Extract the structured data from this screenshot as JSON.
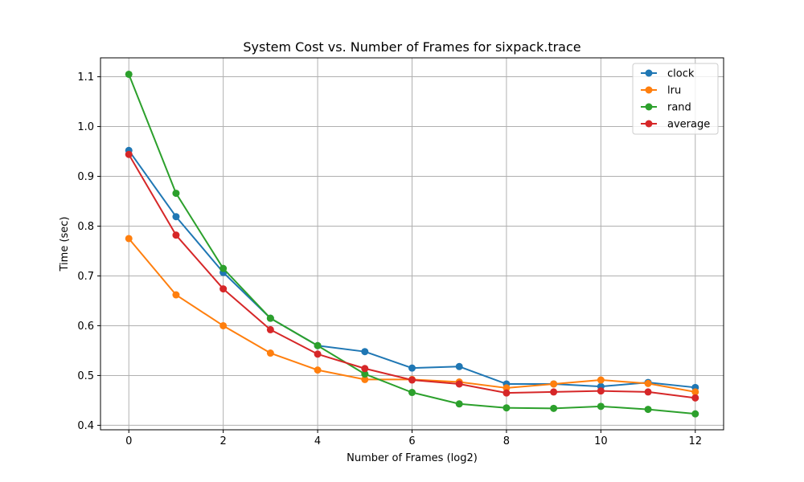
{
  "chart_data": {
    "type": "line",
    "title": "System Cost vs. Number of Frames for sixpack.trace",
    "xlabel": "Number of Frames (log2)",
    "ylabel": "Time (sec)",
    "xlim": [
      -0.6,
      12.6
    ],
    "ylim": [
      0.391,
      1.138
    ],
    "xticks": [
      0,
      2,
      4,
      6,
      8,
      10,
      12
    ],
    "yticks": [
      0.4,
      0.5,
      0.6,
      0.7,
      0.8,
      0.9,
      1.0,
      1.1
    ],
    "ytick_labels": [
      "0.4",
      "0.5",
      "0.6",
      "0.7",
      "0.8",
      "0.9",
      "1.0",
      "1.1"
    ],
    "grid": true,
    "legend_position": "top-right",
    "x": [
      0,
      1,
      2,
      3,
      4,
      5,
      6,
      7,
      8,
      9,
      10,
      11,
      12
    ],
    "series": [
      {
        "name": "clock",
        "color": "#1f77b4",
        "values": [
          0.952,
          0.819,
          0.707,
          0.615,
          0.56,
          0.548,
          0.515,
          0.518,
          0.483,
          0.483,
          0.478,
          0.486,
          0.476
        ]
      },
      {
        "name": "lru",
        "color": "#ff7f0e",
        "values": [
          0.775,
          0.662,
          0.6,
          0.545,
          0.511,
          0.492,
          0.492,
          0.487,
          0.475,
          0.483,
          0.491,
          0.484,
          0.467
        ]
      },
      {
        "name": "rand",
        "color": "#2ca02c",
        "values": [
          1.105,
          0.866,
          0.715,
          0.615,
          0.56,
          0.503,
          0.466,
          0.443,
          0.435,
          0.434,
          0.438,
          0.432,
          0.423
        ]
      },
      {
        "name": "average",
        "color": "#d62728",
        "values": [
          0.944,
          0.782,
          0.674,
          0.592,
          0.543,
          0.514,
          0.491,
          0.483,
          0.465,
          0.467,
          0.469,
          0.467,
          0.455
        ]
      }
    ]
  }
}
